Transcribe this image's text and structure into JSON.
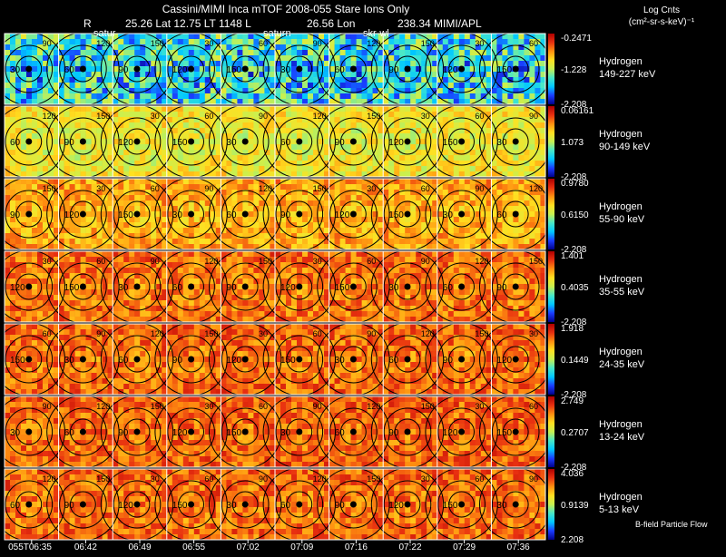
{
  "header": {
    "title": "Cassini/MIMI Inca mTOF  2008-055   Stare   Ions Only",
    "line2_r": "R",
    "line2_lat": "25.26 Lat 12.75 LT 1148 L",
    "line2_lon": "26.56 Lon",
    "line2_inst": "238.34  MIMI/APL",
    "marker_labels": [
      "satur",
      "saturn",
      "skr-wl"
    ]
  },
  "colorbar_title": [
    "Log Cnts",
    "(cm²-sr-s-keV)⁻¹"
  ],
  "footnote": "B-field Particle Flow",
  "colors": {
    "background": "#000000",
    "contour": "#000000",
    "grid": "#ffffff",
    "text": "#ffffff",
    "colormap": [
      "#00008b",
      "#1a3cff",
      "#00c8ff",
      "#48e8c8",
      "#c8f050",
      "#ffe020",
      "#ff9010",
      "#e83010",
      "#b00000"
    ]
  },
  "chart_data": {
    "type": "heatmap",
    "time_axis": {
      "labels": [
        "055T06:35",
        "06:42",
        "06:49",
        "06:55",
        "07:02",
        "07:09",
        "07:16",
        "07:22",
        "07:29",
        "07:36"
      ]
    },
    "contour_labels": [
      "30",
      "60",
      "90",
      "120",
      "150"
    ],
    "panels": [
      {
        "species": "Hydrogen",
        "energy": "149-227 keV",
        "scale_max": "-0.2471",
        "scale_mid": "-1.228",
        "scale_min": "-2.208",
        "level": 0.32
      },
      {
        "species": "Hydrogen",
        "energy": "90-149 keV",
        "scale_max": "0.06161",
        "scale_mid": "1.073",
        "scale_min": "-2.208",
        "level": 0.58
      },
      {
        "species": "Hydrogen",
        "energy": "55-90 keV",
        "scale_max": "0.9780",
        "scale_mid": "0.6150",
        "scale_min": "-2.208",
        "level": 0.7
      },
      {
        "species": "Hydrogen",
        "energy": "35-55 keV",
        "scale_max": "1.401",
        "scale_mid": "0.4035",
        "scale_min": "-2.208",
        "level": 0.78
      },
      {
        "species": "Hydrogen",
        "energy": "24-35 keV",
        "scale_max": "1.918",
        "scale_mid": "0.1449",
        "scale_min": "-2.208",
        "level": 0.79
      },
      {
        "species": "Hydrogen",
        "energy": "13-24 keV",
        "scale_max": "2.749",
        "scale_mid": "0.2707",
        "scale_min": "-2.208",
        "level": 0.8
      },
      {
        "species": "Hydrogen",
        "energy": "5-13 keV",
        "scale_max": "4.036",
        "scale_mid": "0.9139",
        "scale_min": "2.208",
        "level": 0.79
      }
    ]
  }
}
